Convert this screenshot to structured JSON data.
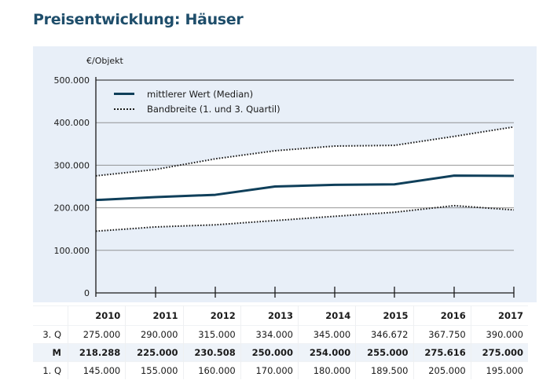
{
  "header": {
    "title": "Preisentwicklung: Häuser"
  },
  "chart_data": {
    "type": "line",
    "title": "Preisentwicklung: Häuser",
    "xlabel": "",
    "ylabel": "€/Objekt",
    "ylim": [
      0,
      500000
    ],
    "yticks": [
      0,
      100000,
      200000,
      300000,
      400000,
      500000
    ],
    "ytick_labels": [
      "0",
      "100.000",
      "200.000",
      "300.000",
      "400.000",
      "500.000"
    ],
    "grid": true,
    "legend_position": "upper left",
    "categories": [
      "2010",
      "2011",
      "2012",
      "2013",
      "2014",
      "2015",
      "2016",
      "2017"
    ],
    "series": [
      {
        "name": "mittlerer Wert (Median)",
        "short": "M",
        "style": "solid",
        "color": "#0f3f5a",
        "values": [
          218288,
          225000,
          230508,
          250000,
          254000,
          255000,
          275616,
          275000
        ]
      },
      {
        "name": "3. Quartil",
        "short": "3. Q",
        "style": "dotted",
        "color": "#1a1a1a",
        "values": [
          275000,
          290000,
          315000,
          334000,
          345000,
          346672,
          367750,
          390000
        ]
      },
      {
        "name": "1. Quartil",
        "short": "1. Q",
        "style": "dotted",
        "color": "#1a1a1a",
        "values": [
          145000,
          155000,
          160000,
          170000,
          180000,
          189500,
          205000,
          195000
        ]
      }
    ],
    "legend": [
      {
        "label": "mittlerer Wert (Median)",
        "style": "solid"
      },
      {
        "label": "Bandbreite (1. und 3. Quartil)",
        "style": "dotted"
      }
    ]
  },
  "chart": {
    "unit_label": "€/Objekt",
    "legend": {
      "median": "mittlerer Wert (Median)",
      "range": "Bandbreite (1. und 3. Quartil)"
    }
  },
  "table": {
    "years": [
      "2010",
      "2011",
      "2012",
      "2013",
      "2014",
      "2015",
      "2016",
      "2017"
    ],
    "rows": [
      {
        "label": "3. Q",
        "values": [
          "275.000",
          "290.000",
          "315.000",
          "334.000",
          "345.000",
          "346.672",
          "367.750",
          "390.000"
        ]
      },
      {
        "label": "M",
        "values": [
          "218.288",
          "225.000",
          "230.508",
          "250.000",
          "254.000",
          "255.000",
          "275.616",
          "275.000"
        ]
      },
      {
        "label": "1. Q",
        "values": [
          "145.000",
          "155.000",
          "160.000",
          "170.000",
          "180.000",
          "189.500",
          "205.000",
          "195.000"
        ]
      }
    ]
  },
  "colors": {
    "title": "#1f4e6b",
    "panel_bg": "#e8eff8",
    "band_fill": "#ffffff",
    "median_line": "#0f3f5a",
    "grid": "#5a5a5a"
  }
}
